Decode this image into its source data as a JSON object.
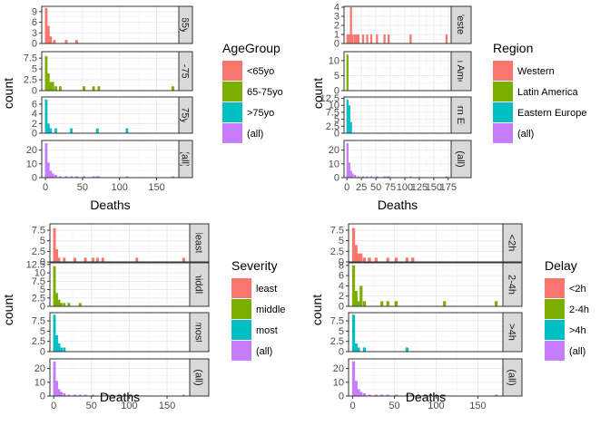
{
  "chart_data": [
    {
      "type": "bar",
      "facet_var": "AgeGroup",
      "xlabel": "Deaths",
      "ylabel": "count",
      "xlim": [
        -5,
        180
      ],
      "x_ticks": [
        0,
        50,
        100,
        150
      ],
      "bin_width": 3.5,
      "legend": {
        "title": "AgeGroup",
        "position": "right"
      },
      "panels": [
        {
          "name": "<65yo",
          "color": "#F8766D",
          "y_ticks": [
            0,
            3,
            6,
            9
          ],
          "ylim": [
            0,
            10.5
          ],
          "bins": [
            {
              "x": 1,
              "y": 10
            },
            {
              "x": 4,
              "y": 5
            },
            {
              "x": 7,
              "y": 2
            },
            {
              "x": 12,
              "y": 1
            },
            {
              "x": 28,
              "y": 1
            },
            {
              "x": 42,
              "y": 1
            }
          ]
        },
        {
          "name": "65-75yo",
          "color": "#7CAE00",
          "y_ticks": [
            0,
            2.5,
            5,
            7.5
          ],
          "ylim": [
            0,
            9
          ],
          "bins": [
            {
              "x": 1,
              "y": 8
            },
            {
              "x": 4,
              "y": 4
            },
            {
              "x": 7,
              "y": 2
            },
            {
              "x": 10,
              "y": 2
            },
            {
              "x": 14,
              "y": 1
            },
            {
              "x": 20,
              "y": 1
            },
            {
              "x": 52,
              "y": 1
            },
            {
              "x": 65,
              "y": 1
            },
            {
              "x": 72,
              "y": 1
            },
            {
              "x": 172,
              "y": 1
            }
          ]
        },
        {
          "name": ">75yo",
          "color": "#00BFC4",
          "y_ticks": [
            0,
            2,
            4,
            6
          ],
          "ylim": [
            0,
            7.5
          ],
          "bins": [
            {
              "x": 1,
              "y": 7
            },
            {
              "x": 4,
              "y": 2
            },
            {
              "x": 7,
              "y": 1
            },
            {
              "x": 14,
              "y": 1
            },
            {
              "x": 35,
              "y": 1
            },
            {
              "x": 70,
              "y": 1
            },
            {
              "x": 110,
              "y": 1
            }
          ]
        },
        {
          "name": "(all)",
          "color": "#C77CFF",
          "y_ticks": [
            0,
            10,
            20
          ],
          "ylim": [
            0,
            27
          ],
          "bins": [
            {
              "x": 1,
              "y": 25
            },
            {
              "x": 4,
              "y": 11
            },
            {
              "x": 7,
              "y": 5
            },
            {
              "x": 10,
              "y": 3
            },
            {
              "x": 14,
              "y": 2
            },
            {
              "x": 20,
              "y": 1
            },
            {
              "x": 28,
              "y": 1
            },
            {
              "x": 35,
              "y": 1
            },
            {
              "x": 42,
              "y": 1
            },
            {
              "x": 52,
              "y": 1
            },
            {
              "x": 65,
              "y": 1
            },
            {
              "x": 70,
              "y": 1
            },
            {
              "x": 72,
              "y": 1
            },
            {
              "x": 110,
              "y": 1
            },
            {
              "x": 172,
              "y": 1
            }
          ]
        }
      ]
    },
    {
      "type": "bar",
      "facet_var": "Region",
      "xlabel": "Deaths",
      "ylabel": "count",
      "xlim": [
        -5,
        180
      ],
      "x_ticks": [
        0,
        25,
        50,
        75,
        100,
        125,
        150,
        175
      ],
      "bin_width": 3.5,
      "legend": {
        "title": "Region",
        "position": "right"
      },
      "panels": [
        {
          "name": "Western",
          "color": "#F8766D",
          "y_ticks": [
            0,
            1,
            2,
            3,
            4
          ],
          "ylim": [
            0,
            4.1
          ],
          "bins": [
            {
              "x": 1,
              "y": 1
            },
            {
              "x": 4,
              "y": 1
            },
            {
              "x": 7,
              "y": 4
            },
            {
              "x": 10,
              "y": 1
            },
            {
              "x": 14,
              "y": 1
            },
            {
              "x": 17,
              "y": 1
            },
            {
              "x": 20,
              "y": 1
            },
            {
              "x": 28,
              "y": 1
            },
            {
              "x": 35,
              "y": 1
            },
            {
              "x": 42,
              "y": 1
            },
            {
              "x": 52,
              "y": 1
            },
            {
              "x": 65,
              "y": 1
            },
            {
              "x": 72,
              "y": 1
            },
            {
              "x": 110,
              "y": 1
            },
            {
              "x": 172,
              "y": 1
            }
          ]
        },
        {
          "name": "Latin America",
          "color": "#7CAE00",
          "y_ticks": [
            0,
            5,
            10
          ],
          "ylim": [
            0,
            13
          ],
          "bins": [
            {
              "x": 1,
              "y": 12
            }
          ]
        },
        {
          "name": "Eastern Europe",
          "color": "#00BFC4",
          "y_ticks": [
            0,
            2.5,
            5,
            7.5,
            10,
            12.5
          ],
          "ylim": [
            0,
            13
          ],
          "bins": [
            {
              "x": 1,
              "y": 12
            },
            {
              "x": 4,
              "y": 10
            },
            {
              "x": 7,
              "y": 4
            }
          ]
        },
        {
          "name": "(all)",
          "color": "#C77CFF",
          "y_ticks": [
            0,
            10,
            20
          ],
          "ylim": [
            0,
            27
          ],
          "bins": [
            {
              "x": 1,
              "y": 25
            },
            {
              "x": 4,
              "y": 11
            },
            {
              "x": 7,
              "y": 5
            },
            {
              "x": 10,
              "y": 3
            },
            {
              "x": 14,
              "y": 2
            },
            {
              "x": 20,
              "y": 1
            },
            {
              "x": 28,
              "y": 1
            },
            {
              "x": 35,
              "y": 1
            },
            {
              "x": 42,
              "y": 1
            },
            {
              "x": 52,
              "y": 1
            },
            {
              "x": 65,
              "y": 1
            },
            {
              "x": 70,
              "y": 1
            },
            {
              "x": 72,
              "y": 1
            },
            {
              "x": 110,
              "y": 1
            },
            {
              "x": 172,
              "y": 1
            }
          ]
        }
      ]
    },
    {
      "type": "bar",
      "facet_var": "Severity",
      "xlabel": "Deaths",
      "ylabel": "count",
      "xlim": [
        -5,
        180
      ],
      "x_ticks": [
        0,
        50,
        100,
        150
      ],
      "bin_width": 3.5,
      "legend": {
        "title": "Severity",
        "position": "right"
      },
      "panels": [
        {
          "name": "least",
          "color": "#F8766D",
          "y_ticks": [
            0,
            2.5,
            5,
            7.5
          ],
          "ylim": [
            0,
            9
          ],
          "bins": [
            {
              "x": 1,
              "y": 8
            },
            {
              "x": 4,
              "y": 3
            },
            {
              "x": 7,
              "y": 1
            },
            {
              "x": 14,
              "y": 1
            },
            {
              "x": 28,
              "y": 1
            },
            {
              "x": 42,
              "y": 1
            },
            {
              "x": 52,
              "y": 1
            },
            {
              "x": 58,
              "y": 1
            },
            {
              "x": 65,
              "y": 1
            },
            {
              "x": 110,
              "y": 1
            },
            {
              "x": 172,
              "y": 1
            }
          ]
        },
        {
          "name": "middle",
          "color": "#7CAE00",
          "y_ticks": [
            0,
            2.5,
            5,
            7.5,
            10,
            12.5
          ],
          "ylim": [
            0,
            13
          ],
          "bins": [
            {
              "x": 1,
              "y": 12
            },
            {
              "x": 4,
              "y": 4
            },
            {
              "x": 7,
              "y": 2
            },
            {
              "x": 10,
              "y": 1
            },
            {
              "x": 14,
              "y": 1
            },
            {
              "x": 20,
              "y": 1
            },
            {
              "x": 35,
              "y": 1
            }
          ]
        },
        {
          "name": "most",
          "color": "#00BFC4",
          "y_ticks": [
            0,
            2.5,
            5,
            7.5
          ],
          "ylim": [
            0,
            9.5
          ],
          "bins": [
            {
              "x": 1,
              "y": 9
            },
            {
              "x": 4,
              "y": 4
            },
            {
              "x": 7,
              "y": 2
            },
            {
              "x": 10,
              "y": 1
            },
            {
              "x": 14,
              "y": 1
            }
          ]
        },
        {
          "name": "(all)",
          "color": "#C77CFF",
          "y_ticks": [
            0,
            10,
            20
          ],
          "ylim": [
            0,
            27
          ],
          "bins": [
            {
              "x": 1,
              "y": 25
            },
            {
              "x": 4,
              "y": 11
            },
            {
              "x": 7,
              "y": 5
            },
            {
              "x": 10,
              "y": 3
            },
            {
              "x": 14,
              "y": 2
            },
            {
              "x": 20,
              "y": 1
            },
            {
              "x": 28,
              "y": 1
            },
            {
              "x": 35,
              "y": 1
            },
            {
              "x": 42,
              "y": 1
            },
            {
              "x": 52,
              "y": 1
            },
            {
              "x": 65,
              "y": 1
            },
            {
              "x": 70,
              "y": 1
            },
            {
              "x": 72,
              "y": 1
            },
            {
              "x": 110,
              "y": 1
            },
            {
              "x": 172,
              "y": 1
            }
          ]
        }
      ]
    },
    {
      "type": "bar",
      "facet_var": "Delay",
      "xlabel": "Deaths",
      "ylabel": "count",
      "xlim": [
        -5,
        180
      ],
      "x_ticks": [
        0,
        50,
        100,
        150
      ],
      "bin_width": 3.5,
      "legend": {
        "title": "Delay",
        "position": "right"
      },
      "panels": [
        {
          "name": "<2h",
          "color": "#F8766D",
          "y_ticks": [
            0,
            2.5,
            5,
            7.5
          ],
          "ylim": [
            0,
            9
          ],
          "bins": [
            {
              "x": 1,
              "y": 8
            },
            {
              "x": 4,
              "y": 4
            },
            {
              "x": 7,
              "y": 2
            },
            {
              "x": 10,
              "y": 2
            },
            {
              "x": 14,
              "y": 1
            },
            {
              "x": 20,
              "y": 1
            },
            {
              "x": 28,
              "y": 1
            },
            {
              "x": 42,
              "y": 1
            },
            {
              "x": 52,
              "y": 1
            },
            {
              "x": 65,
              "y": 1
            },
            {
              "x": 72,
              "y": 1
            }
          ]
        },
        {
          "name": "2-4h",
          "color": "#7CAE00",
          "y_ticks": [
            0,
            2,
            4,
            6,
            8
          ],
          "ylim": [
            0,
            8.5
          ],
          "bins": [
            {
              "x": 1,
              "y": 8
            },
            {
              "x": 4,
              "y": 3
            },
            {
              "x": 7,
              "y": 1
            },
            {
              "x": 10,
              "y": 4
            },
            {
              "x": 14,
              "y": 1
            },
            {
              "x": 35,
              "y": 1
            },
            {
              "x": 42,
              "y": 1
            },
            {
              "x": 52,
              "y": 1
            },
            {
              "x": 110,
              "y": 1
            },
            {
              "x": 172,
              "y": 1
            }
          ]
        },
        {
          "name": ">4h",
          "color": "#00BFC4",
          "y_ticks": [
            0,
            2.5,
            5,
            7.5
          ],
          "ylim": [
            0,
            9.5
          ],
          "bins": [
            {
              "x": 1,
              "y": 9
            },
            {
              "x": 4,
              "y": 2
            },
            {
              "x": 7,
              "y": 1
            },
            {
              "x": 14,
              "y": 1
            },
            {
              "x": 65,
              "y": 1
            }
          ]
        },
        {
          "name": "(all)",
          "color": "#C77CFF",
          "y_ticks": [
            0,
            10,
            20
          ],
          "ylim": [
            0,
            27
          ],
          "bins": [
            {
              "x": 1,
              "y": 25
            },
            {
              "x": 4,
              "y": 11
            },
            {
              "x": 7,
              "y": 5
            },
            {
              "x": 10,
              "y": 3
            },
            {
              "x": 14,
              "y": 2
            },
            {
              "x": 20,
              "y": 1
            },
            {
              "x": 28,
              "y": 1
            },
            {
              "x": 35,
              "y": 1
            },
            {
              "x": 42,
              "y": 1
            },
            {
              "x": 52,
              "y": 1
            },
            {
              "x": 65,
              "y": 1
            },
            {
              "x": 70,
              "y": 1
            },
            {
              "x": 72,
              "y": 1
            },
            {
              "x": 110,
              "y": 1
            },
            {
              "x": 172,
              "y": 1
            }
          ]
        }
      ]
    }
  ]
}
